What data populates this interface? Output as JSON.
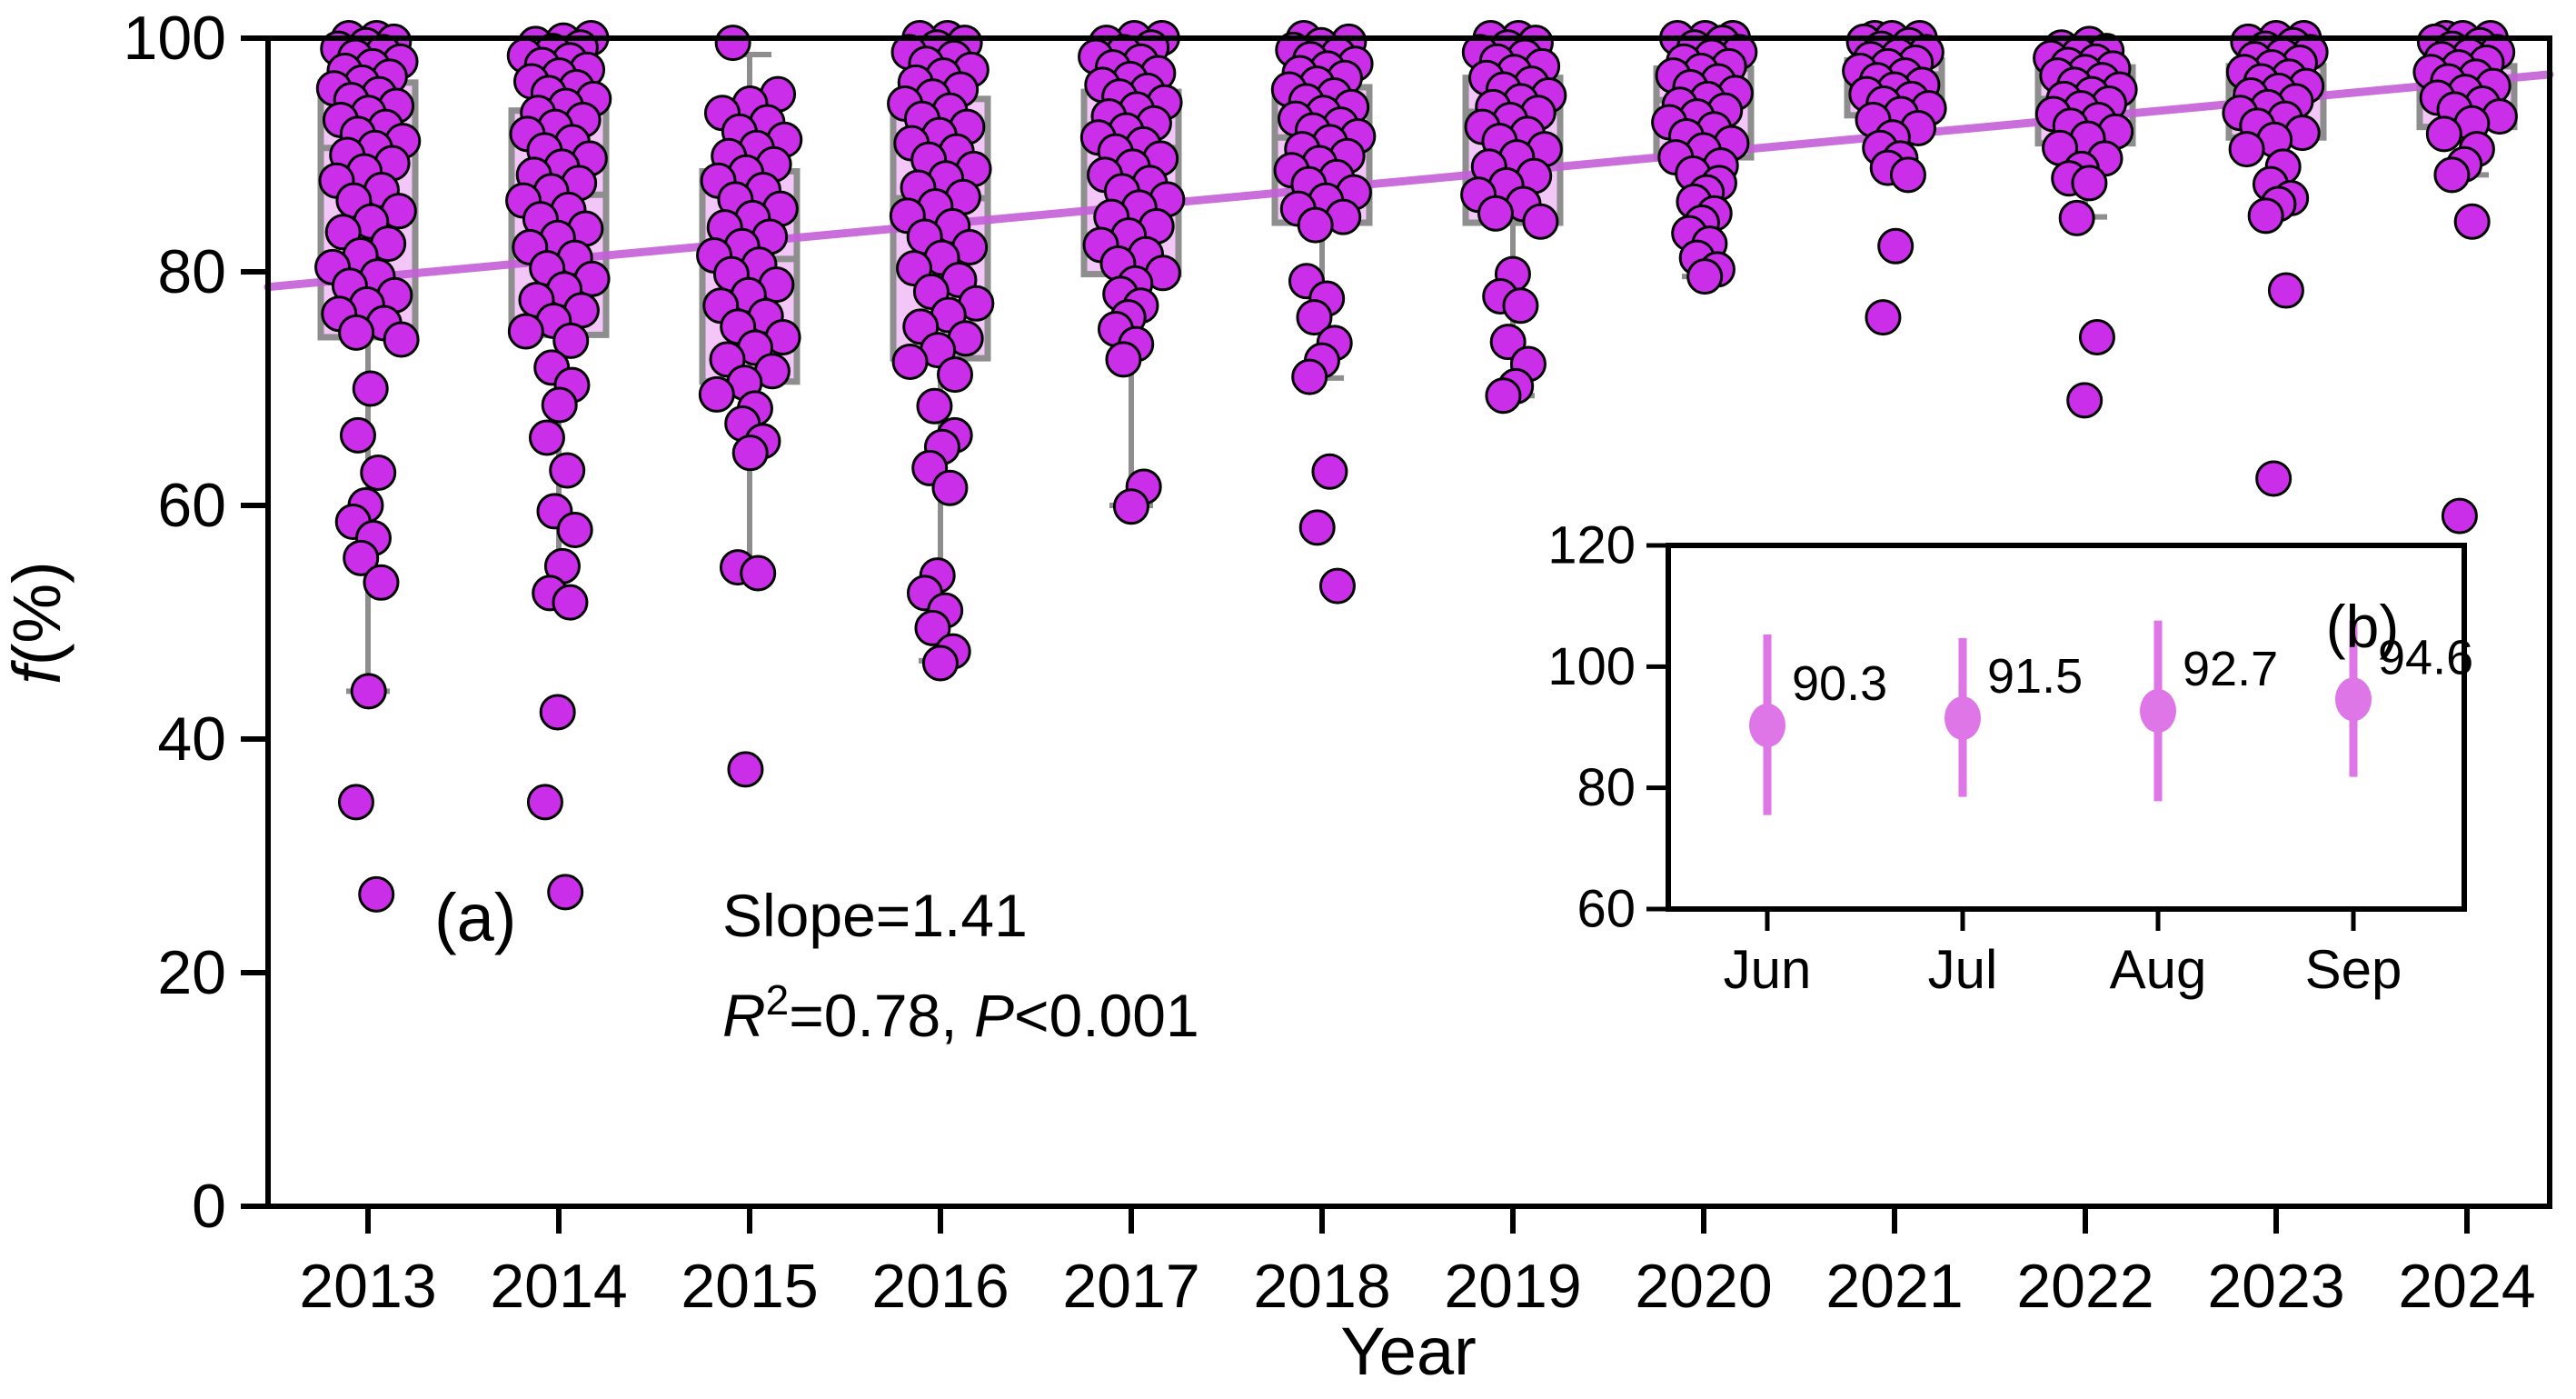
{
  "figure": {
    "panel_a_label": "(a)",
    "panel_b_label": "(b)",
    "annotation": {
      "slope_line": "Slope=1.41",
      "r2_base": "R",
      "r2_sup": "2",
      "r2_rest": "=0.78, ",
      "p_italic": "P",
      "p_rest": "<0.001"
    },
    "xlabel": "Year",
    "ylabel_italic": "f",
    "ylabel_rest": "(%)"
  },
  "chart_data": {
    "type": "box",
    "title": "",
    "xlabel": "Year",
    "ylabel": "f(%)",
    "ylim": [
      0,
      100
    ],
    "yticks": [
      0,
      20,
      40,
      60,
      80,
      100
    ],
    "grid": false,
    "categories": [
      "2013",
      "2014",
      "2015",
      "2016",
      "2017",
      "2018",
      "2019",
      "2020",
      "2021",
      "2022",
      "2023",
      "2024"
    ],
    "boxes": [
      {
        "year": "2013",
        "q1": 74.4,
        "median": 90.6,
        "q3": 96.2,
        "whisker_low": 44.1,
        "whisker_high": 100
      },
      {
        "year": "2014",
        "q1": 74.6,
        "median": 86.6,
        "q3": 93.8,
        "whisker_low": 52.2,
        "whisker_high": 99.8
      },
      {
        "year": "2015",
        "q1": 70.6,
        "median": 81.1,
        "q3": 88.6,
        "whisker_low": 54.3,
        "whisker_high": 98.6
      },
      {
        "year": "2016",
        "q1": 72.6,
        "median": 86.3,
        "q3": 94.8,
        "whisker_low": 46.7,
        "whisker_high": 100
      },
      {
        "year": "2017",
        "q1": 79.8,
        "median": 90.6,
        "q3": 95.4,
        "whisker_low": 60.0,
        "whisker_high": 100
      },
      {
        "year": "2018",
        "q1": 84.2,
        "median": 91.5,
        "q3": 95.8,
        "whisker_low": 70.9,
        "whisker_high": 99.8
      },
      {
        "year": "2019",
        "q1": 84.2,
        "median": 93.7,
        "q3": 96.6,
        "whisker_low": 69.4,
        "whisker_high": 100
      },
      {
        "year": "2020",
        "q1": 89.8,
        "median": 94.7,
        "q3": 97.4,
        "whisker_low": 79.6,
        "whisker_high": 100
      },
      {
        "year": "2021",
        "q1": 93.4,
        "median": 96.9,
        "q3": 98.1,
        "whisker_low": 88.3,
        "whisker_high": 100
      },
      {
        "year": "2022",
        "q1": 91.0,
        "median": 94.8,
        "q3": 97.5,
        "whisker_low": 84.7,
        "whisker_high": 99.5
      },
      {
        "year": "2023",
        "q1": 91.5,
        "median": 95.7,
        "q3": 97.6,
        "whisker_low": 85.8,
        "whisker_high": 100
      },
      {
        "year": "2024",
        "q1": 92.4,
        "median": 96.0,
        "q3": 97.6,
        "whisker_low": 88.3,
        "whisker_high": 100
      }
    ],
    "scatter": [
      [
        100,
        100,
        99.7,
        99.4,
        99.1,
        98.8,
        98.4,
        98,
        97.6,
        97.2,
        96.7,
        96.2,
        95.7,
        95.2,
        94.7,
        94.2,
        93.6,
        93,
        92.4,
        91.8,
        91.2,
        90.6,
        90,
        89.3,
        88.6,
        87.8,
        87,
        86.1,
        85.2,
        84.3,
        83.4,
        82.4,
        81.4,
        80.4,
        79.6,
        78.8,
        78,
        77.2,
        76.4,
        75.6,
        74.8,
        74.2,
        70,
        66,
        62.8,
        60,
        58.6,
        57.2,
        55.5,
        53.4,
        44.1,
        34.6,
        26.7
      ],
      [
        100,
        99.8,
        99.5,
        99.2,
        98.9,
        98.5,
        98.1,
        97.7,
        97.3,
        96.8,
        96.3,
        95.8,
        95.3,
        94.8,
        94.2,
        93.6,
        93,
        92.4,
        91.8,
        91.1,
        90.4,
        89.7,
        89,
        88.3,
        87.6,
        86.9,
        86.1,
        85.3,
        84.5,
        83.7,
        82.9,
        82.1,
        81.2,
        80.3,
        79.4,
        78.5,
        77.6,
        76.7,
        75.8,
        74.9,
        74.1,
        71.8,
        70.3,
        68.6,
        65.8,
        63,
        59.5,
        57.9,
        54.8,
        52.5,
        51.7,
        42.3,
        34.6,
        26.9
      ],
      [
        99.6,
        95.2,
        94.4,
        93.6,
        92.8,
        92,
        91.3,
        90.6,
        89.9,
        89.2,
        88.5,
        87.8,
        87,
        86.2,
        85.4,
        84.6,
        83.8,
        83,
        82.2,
        81.4,
        80.6,
        79.8,
        78.9,
        78,
        77.1,
        76.2,
        75.3,
        74.4,
        73.5,
        72.5,
        71.5,
        70.5,
        69.5,
        68.3,
        67,
        65.5,
        64.5,
        54.7,
        54.2,
        37.4
      ],
      [
        100,
        100,
        99.6,
        99.2,
        98.8,
        98.3,
        97.8,
        97.3,
        96.8,
        96.2,
        95.6,
        95,
        94.4,
        93.8,
        93.1,
        92.4,
        91.7,
        91,
        90.3,
        89.6,
        88.8,
        88,
        87.2,
        86.4,
        85.6,
        84.8,
        83.9,
        83,
        82.1,
        81.2,
        80.3,
        79.3,
        78.3,
        77.3,
        76.3,
        75.3,
        74.3,
        73.3,
        72.3,
        71.2,
        68.5,
        66,
        65,
        63.2,
        61.5,
        54,
        52.5,
        51,
        49.5,
        47.5,
        46.5
      ],
      [
        100,
        100,
        99.6,
        99.2,
        98.8,
        98.4,
        98,
        97.5,
        97,
        96.5,
        96,
        95.5,
        95,
        94.5,
        93.9,
        93.3,
        92.7,
        92.1,
        91.5,
        90.9,
        90.3,
        89.7,
        89,
        88.3,
        87.6,
        86.9,
        86.2,
        85.5,
        84.7,
        83.9,
        83.1,
        82.3,
        81.5,
        80.7,
        79.9,
        79,
        78.1,
        77.1,
        76.1,
        75.1,
        73.8,
        72.5,
        61.6,
        59.9
      ],
      [
        100,
        99.7,
        99.4,
        99,
        98.6,
        98.2,
        97.8,
        97.4,
        97,
        96.6,
        96.1,
        95.6,
        95.1,
        94.6,
        94.1,
        93.6,
        93.1,
        92.6,
        92.1,
        91.6,
        91.1,
        90.5,
        89.9,
        89.3,
        88.7,
        88.1,
        87.5,
        86.8,
        86.1,
        85.4,
        84.7,
        84,
        79.2,
        77.7,
        76.1,
        73.9,
        72.4,
        71,
        62.9,
        58.1,
        53.1
      ],
      [
        100,
        100,
        99.6,
        99.2,
        98.8,
        98.4,
        98,
        97.6,
        97.1,
        96.6,
        96.1,
        95.6,
        95.1,
        94.6,
        94.1,
        93.6,
        93,
        92.4,
        91.8,
        91.2,
        90.5,
        89.8,
        89,
        88.2,
        87.4,
        86.6,
        85.8,
        85,
        84.3,
        79.8,
        77.9,
        77.1,
        74,
        72.1,
        70.2,
        69.4
      ],
      [
        100,
        100,
        100,
        99.6,
        99.2,
        98.8,
        98.4,
        98,
        97.6,
        97.2,
        96.8,
        96.3,
        95.8,
        95.3,
        94.8,
        94.3,
        93.8,
        93.3,
        92.8,
        92.2,
        91.6,
        91,
        90.4,
        89.8,
        89.1,
        88.4,
        87.6,
        86.8,
        86,
        85,
        84.2,
        83.3,
        82.4,
        81.2,
        80.2,
        79.6
      ],
      [
        100,
        100,
        100,
        99.7,
        99.4,
        99.1,
        98.8,
        98.5,
        98.2,
        97.9,
        97.6,
        97.2,
        96.8,
        96.4,
        96,
        95.6,
        95.2,
        94.8,
        94.4,
        94,
        93.5,
        93,
        92.3,
        91.5,
        90.6,
        89.7,
        88.9,
        88.3,
        82.2,
        76.1
      ],
      [
        99.5,
        99.2,
        98.9,
        98.6,
        98.3,
        98,
        97.7,
        97.4,
        97.1,
        96.8,
        96.4,
        96,
        95.6,
        95.2,
        94.8,
        94.4,
        94,
        93.5,
        93,
        92.5,
        92,
        91.4,
        90.6,
        89.7,
        88.8,
        88,
        87.6,
        84.6,
        74.4,
        69
      ],
      [
        100,
        100,
        99.7,
        99.4,
        99.1,
        98.8,
        98.5,
        98.2,
        97.9,
        97.5,
        97.1,
        96.7,
        96.3,
        95.9,
        95.5,
        95.1,
        94.6,
        94.1,
        93.6,
        93.1,
        92.5,
        91.9,
        91.3,
        90.5,
        89,
        87.5,
        86.3,
        85.8,
        84.8,
        78.4,
        62.3
      ],
      [
        100,
        100,
        100,
        99.7,
        99.4,
        99.1,
        98.8,
        98.5,
        98.2,
        97.9,
        97.5,
        97.1,
        96.7,
        96.3,
        95.9,
        95.4,
        94.9,
        94.4,
        93.9,
        93.3,
        92.7,
        91.8,
        90.5,
        89.2,
        88.3,
        84.3,
        59.1
      ]
    ],
    "trend": {
      "slope": 1.41,
      "r_squared": 0.78,
      "p_value": "<0.001",
      "value_at_left_axis": 78.7,
      "value_at_right_axis": 96.9
    },
    "inset": {
      "type": "errorbar",
      "categories": [
        "Jun",
        "Jul",
        "Aug",
        "Sep"
      ],
      "means": [
        90.3,
        91.5,
        92.7,
        94.6
      ],
      "labels": [
        "90.3",
        "91.5",
        "92.7",
        "94.6"
      ],
      "lo": [
        75.5,
        78.5,
        77.8,
        81.8
      ],
      "hi": [
        105.3,
        104.7,
        107.6,
        107.6
      ],
      "ylim": [
        60,
        120
      ],
      "yticks": [
        60,
        80,
        100,
        120
      ]
    },
    "colors": {
      "point_fill": "#cb2ee8",
      "point_stroke": "#000000",
      "box_fill": "#f3c6f8",
      "box_border": "#8e8e8e",
      "whisker": "#8e8e8e",
      "trend_line": "#c45fd8",
      "inset_accent": "#de76e8",
      "axis": "#000000"
    }
  }
}
